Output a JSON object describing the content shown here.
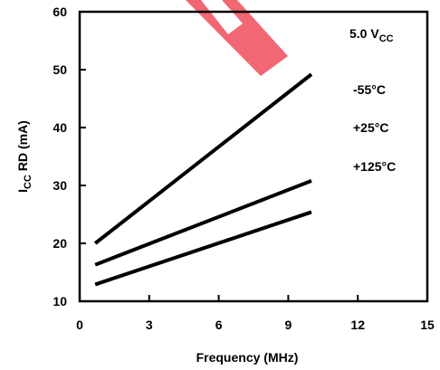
{
  "chart_data": {
    "type": "line",
    "xlabel": "Frequency (MHz)",
    "ylabel_main": "I",
    "ylabel_sub": "CC",
    "ylabel_rest": " RD (mA)",
    "xlim": [
      0,
      15
    ],
    "ylim": [
      10,
      60
    ],
    "xticks": [
      0,
      3,
      6,
      9,
      12,
      15
    ],
    "yticks": [
      10,
      20,
      30,
      40,
      50,
      60
    ],
    "grid": false,
    "series": [
      {
        "name": "-55°C",
        "x": [
          0.67,
          10
        ],
        "y": [
          20,
          49.2
        ]
      },
      {
        "name": "+25°C",
        "x": [
          0.67,
          10
        ],
        "y": [
          16.3,
          30.8
        ]
      },
      {
        "name": "+125°C",
        "x": [
          0.67,
          10
        ],
        "y": [
          12.9,
          25.4
        ]
      }
    ],
    "condition_main": "5.0 V",
    "condition_sub": "CC"
  },
  "colors": {
    "line": "#000000",
    "axis": "#000000",
    "watermark": "#ef4c5a"
  }
}
